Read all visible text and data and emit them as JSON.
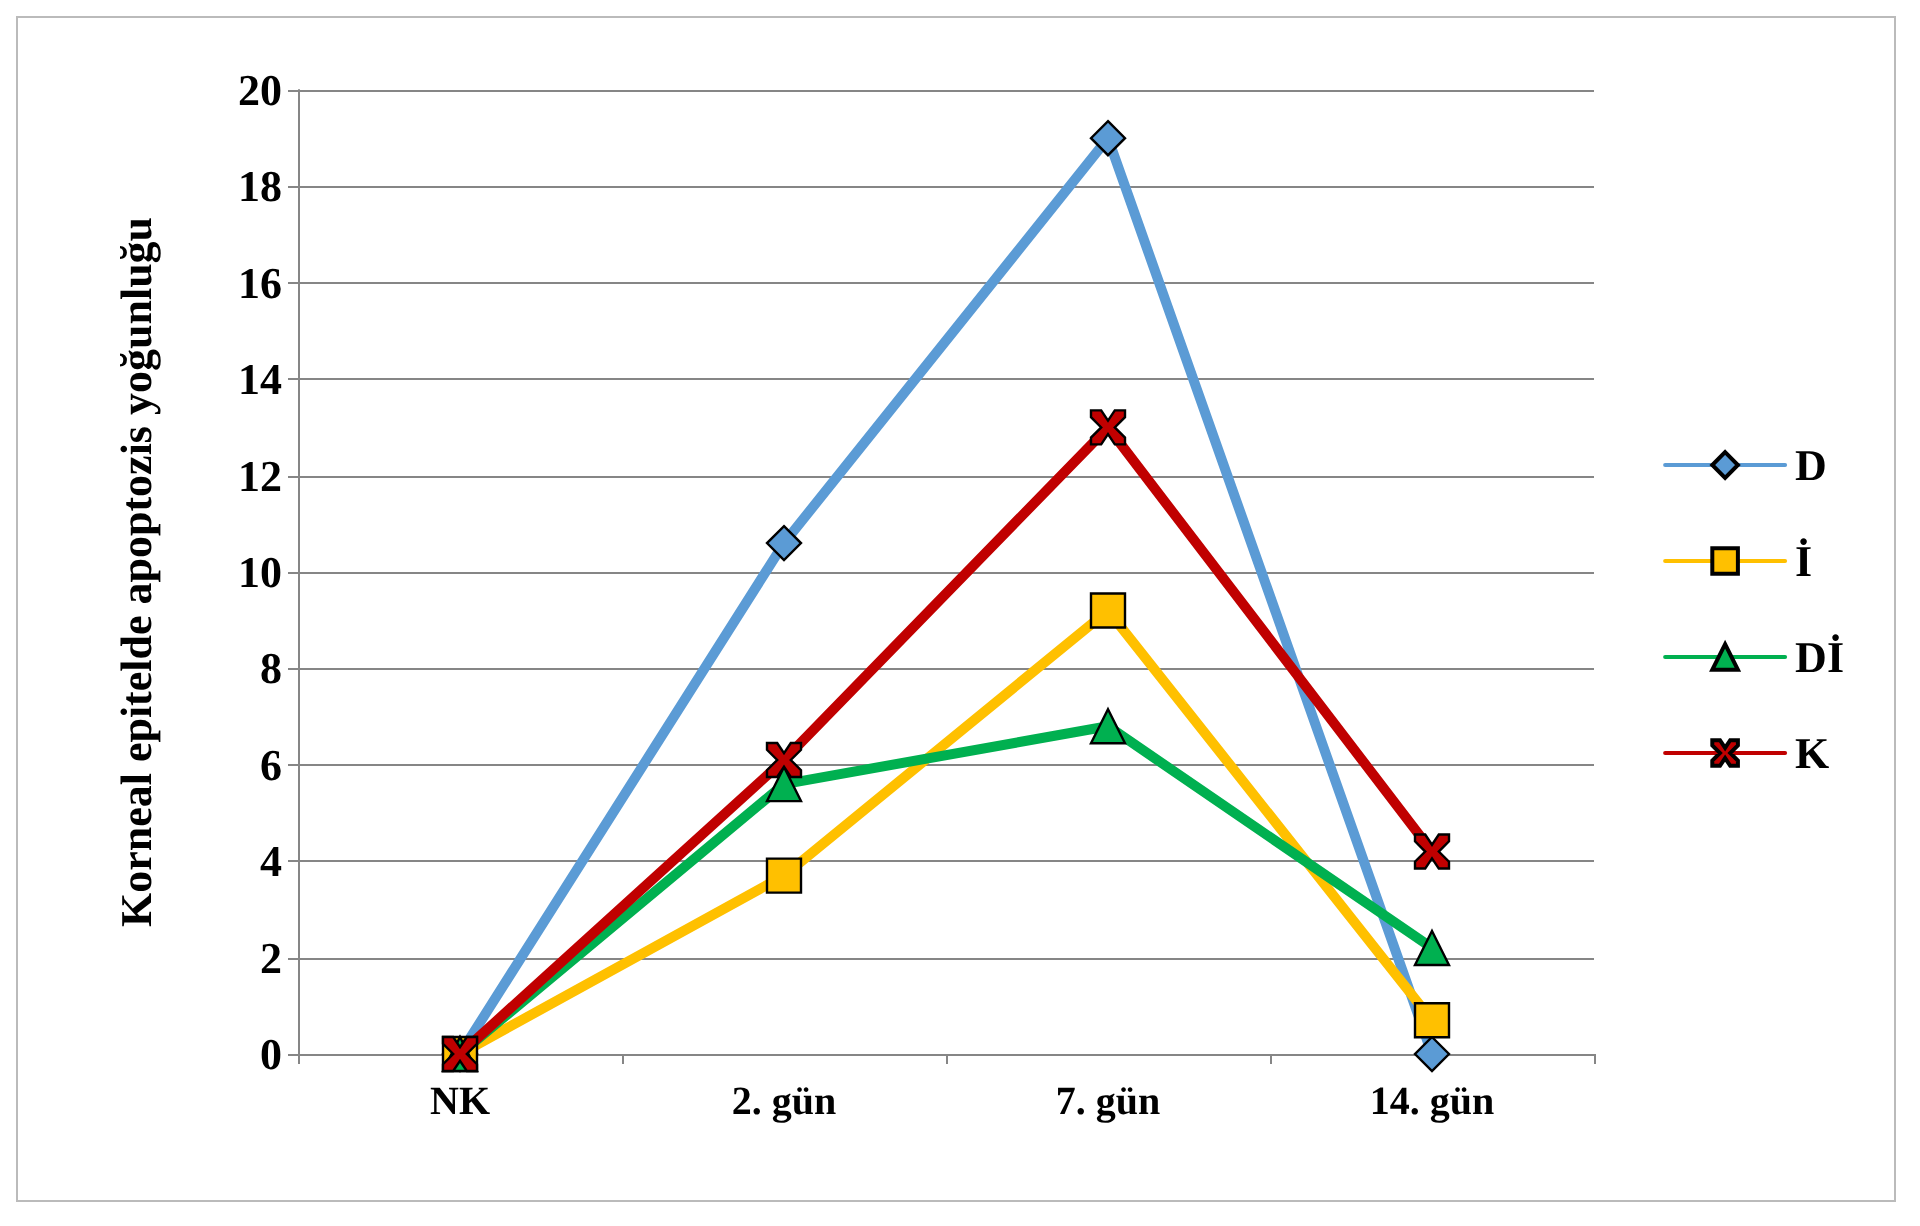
{
  "chart_data": {
    "type": "line",
    "ylabel": "Korneal epitelde apoptozis yoğunluğu",
    "categories": [
      "NK",
      "2. gün",
      "7. gün",
      "14. gün"
    ],
    "series": [
      {
        "name": "D",
        "color": "#5b9bd5",
        "marker": "diamond",
        "values": [
          0,
          10.6,
          19,
          0
        ]
      },
      {
        "name": "İ",
        "color": "#ffc000",
        "marker": "square",
        "values": [
          0,
          3.7,
          9.2,
          0.7
        ]
      },
      {
        "name": "Dİ",
        "color": "#00b050",
        "marker": "triangle",
        "values": [
          0,
          5.6,
          6.8,
          2.2
        ]
      },
      {
        "name": "K",
        "color": "#c00000",
        "marker": "cross",
        "values": [
          0,
          6.1,
          13,
          4.2
        ]
      }
    ],
    "ylim": [
      0,
      20
    ],
    "yticks": [
      0,
      2,
      4,
      6,
      8,
      10,
      12,
      14,
      16,
      18,
      20
    ],
    "grid": "y",
    "legend": "right",
    "line_style": "solid"
  }
}
